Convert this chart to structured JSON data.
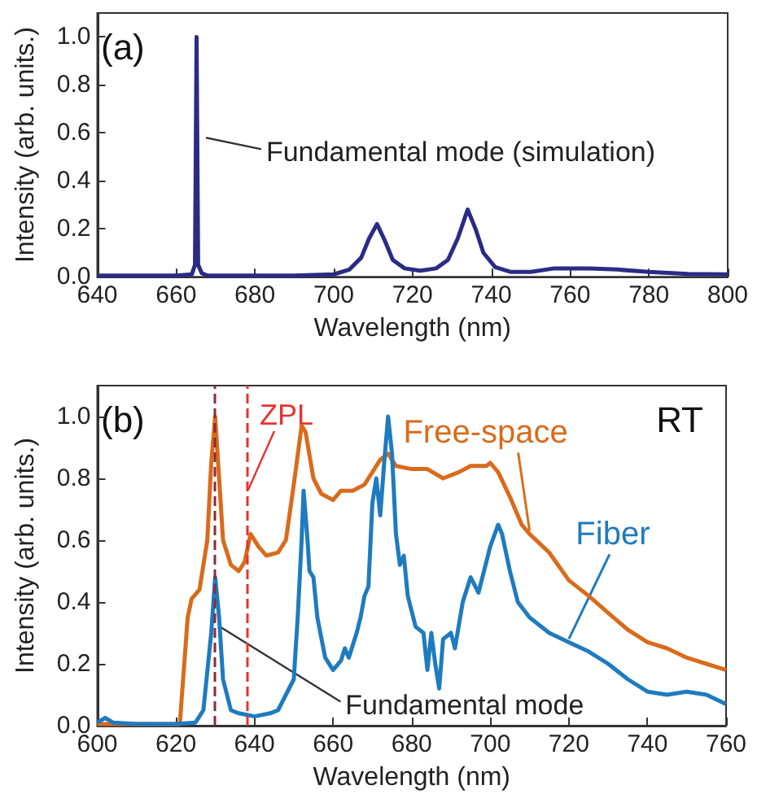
{
  "chart_data": [
    {
      "type": "line",
      "xlabel": "Wavelength (nm)",
      "ylabel": "Intensity (arb. units.)",
      "xlim": [
        640,
        800
      ],
      "ylim": [
        0,
        1.1
      ],
      "xticks": [
        640,
        660,
        680,
        700,
        720,
        740,
        760,
        780,
        800
      ],
      "yticks": [
        {
          "value": 0,
          "label": "0.0"
        },
        {
          "value": 0.2,
          "label": "0.2"
        },
        {
          "value": 0.4,
          "label": "0.4"
        },
        {
          "value": 0.6,
          "label": "0.6"
        },
        {
          "value": 0.8,
          "label": "0.8"
        },
        {
          "value": 1,
          "label": "1.0"
        }
      ],
      "grid": false,
      "legend": false,
      "marker": "none",
      "line_style": "solid",
      "annotations": [
        "(a)",
        {
          "text": "Fundamental mode (simulation)",
          "x": 665.5,
          "y": 0.6
        }
      ],
      "series": [
        {
          "color": "#2b2b86",
          "x": [
            640,
            660,
            664,
            664.8,
            665.2,
            665.6,
            666.5,
            668,
            690,
            700,
            704,
            707,
            709,
            711,
            713,
            715,
            718,
            722,
            726,
            729,
            731.5,
            734,
            736,
            738,
            741,
            745,
            750,
            756,
            765,
            772,
            780,
            790,
            800
          ],
          "values": [
            0.005,
            0.005,
            0.01,
            0.05,
            1.0,
            0.05,
            0.015,
            0.005,
            0.005,
            0.01,
            0.03,
            0.08,
            0.16,
            0.22,
            0.15,
            0.07,
            0.035,
            0.025,
            0.035,
            0.07,
            0.16,
            0.28,
            0.2,
            0.1,
            0.04,
            0.02,
            0.02,
            0.035,
            0.035,
            0.03,
            0.02,
            0.012,
            0.01
          ]
        }
      ]
    },
    {
      "type": "line",
      "xlabel": "Wavelength (nm)",
      "ylabel": "Intensity (arb. units.)",
      "xlim": [
        600,
        760
      ],
      "ylim": [
        0,
        1.1
      ],
      "xticks": [
        600,
        620,
        640,
        660,
        680,
        700,
        720,
        740,
        760
      ],
      "yticks": [
        {
          "value": 0,
          "label": "0.0"
        },
        {
          "value": 0.2,
          "label": "0.2"
        },
        {
          "value": 0.4,
          "label": "0.4"
        },
        {
          "value": 0.6,
          "label": "0.6"
        },
        {
          "value": 0.8,
          "label": "0.8"
        },
        {
          "value": 1,
          "label": "1.0"
        }
      ],
      "grid": false,
      "legend": false,
      "marker": "none",
      "line_style": "solid",
      "ref_lines": [
        {
          "axis": "x",
          "value": 630,
          "color": "#8b2a3a",
          "line_style": "dashed"
        },
        {
          "axis": "x",
          "value": 638,
          "label": "ZPL",
          "color": "#e8322e",
          "line_style": "dashed"
        }
      ],
      "annotations": [
        "(b)",
        "RT",
        {
          "text": "Fundamental mode",
          "x": 630,
          "y": 0.33
        }
      ],
      "series": [
        {
          "name": "Free-space",
          "color": "#d96b1c",
          "x": [
            600,
            610,
            621,
            623,
            624,
            626,
            628,
            629,
            630,
            631,
            632,
            634,
            636,
            637.5,
            639,
            641,
            643,
            646,
            648,
            650,
            652,
            653,
            655,
            657,
            660,
            662,
            665,
            668,
            670,
            672,
            674,
            676,
            680,
            684,
            688,
            692,
            695,
            699,
            700,
            702,
            705,
            708,
            710,
            715,
            720,
            725,
            730,
            735,
            740,
            745,
            750,
            755,
            760
          ],
          "values": [
            0.005,
            0.005,
            0.005,
            0.35,
            0.41,
            0.44,
            0.6,
            0.85,
            1.0,
            0.8,
            0.6,
            0.52,
            0.5,
            0.53,
            0.62,
            0.58,
            0.55,
            0.56,
            0.6,
            0.78,
            0.97,
            0.95,
            0.8,
            0.75,
            0.73,
            0.76,
            0.76,
            0.78,
            0.82,
            0.86,
            0.88,
            0.84,
            0.83,
            0.83,
            0.8,
            0.82,
            0.84,
            0.84,
            0.85,
            0.82,
            0.74,
            0.65,
            0.62,
            0.56,
            0.47,
            0.42,
            0.365,
            0.31,
            0.27,
            0.25,
            0.22,
            0.2,
            0.18
          ]
        },
        {
          "name": "Fiber",
          "color": "#1f7bbf",
          "x": [
            600,
            602,
            604,
            610,
            620,
            625,
            627,
            629,
            630,
            631,
            632,
            634,
            636,
            640,
            644,
            646,
            648,
            650,
            651,
            652,
            652.5,
            653.5,
            654,
            655,
            656,
            658,
            660,
            662,
            663,
            664,
            666,
            667,
            668,
            669,
            670,
            671,
            672,
            673,
            674,
            675,
            676,
            677,
            678,
            679,
            681,
            683,
            684,
            685,
            686,
            687,
            688,
            690,
            691,
            693,
            695,
            697,
            700,
            702,
            703,
            705,
            707,
            710,
            715,
            720,
            725,
            730,
            735,
            740,
            745,
            750,
            755,
            760
          ],
          "values": [
            0.01,
            0.025,
            0.01,
            0.005,
            0.005,
            0.01,
            0.05,
            0.3,
            0.48,
            0.35,
            0.15,
            0.05,
            0.04,
            0.03,
            0.04,
            0.05,
            0.1,
            0.15,
            0.35,
            0.6,
            0.76,
            0.6,
            0.5,
            0.48,
            0.35,
            0.22,
            0.18,
            0.21,
            0.25,
            0.22,
            0.3,
            0.35,
            0.42,
            0.45,
            0.72,
            0.8,
            0.68,
            0.85,
            1.0,
            0.88,
            0.62,
            0.52,
            0.55,
            0.42,
            0.32,
            0.3,
            0.18,
            0.3,
            0.2,
            0.12,
            0.28,
            0.3,
            0.25,
            0.4,
            0.48,
            0.43,
            0.58,
            0.65,
            0.62,
            0.5,
            0.4,
            0.35,
            0.3,
            0.27,
            0.24,
            0.2,
            0.15,
            0.11,
            0.1,
            0.11,
            0.1,
            0.07
          ]
        }
      ]
    }
  ]
}
